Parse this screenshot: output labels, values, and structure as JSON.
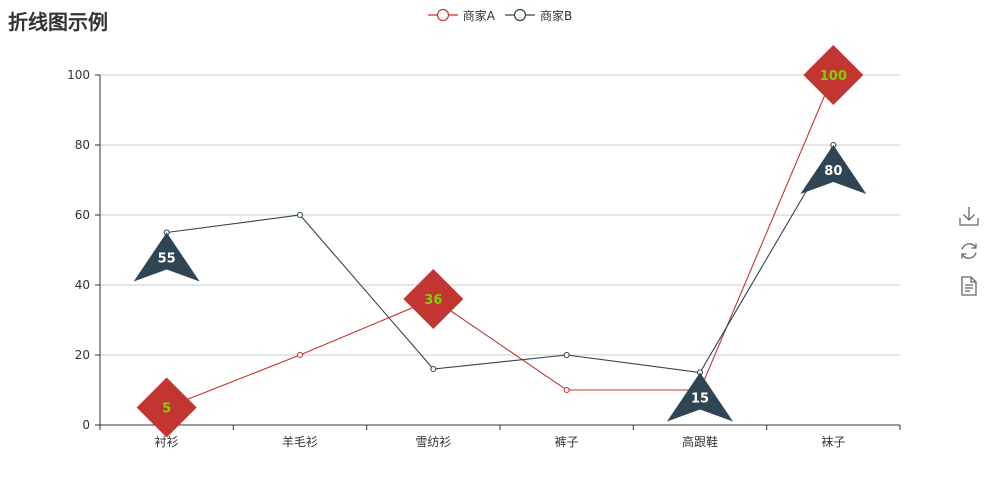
{
  "chart_data": {
    "type": "line",
    "title": "折线图示例",
    "categories": [
      "衬衫",
      "羊毛衫",
      "雪纺衫",
      "裤子",
      "高跟鞋",
      "袜子"
    ],
    "ylim": [
      0,
      100
    ],
    "yticks": [
      0,
      20,
      40,
      60,
      80,
      100
    ],
    "grid": true,
    "legend_position": "top-center",
    "series": [
      {
        "name": "商家A",
        "color": "#c23531",
        "values": [
          5,
          20,
          36,
          10,
          10,
          100
        ],
        "mark_points": [
          {
            "category": "衬衫",
            "value": 5
          },
          {
            "category": "雪纺衫",
            "value": 36
          },
          {
            "category": "袜子",
            "value": 100
          }
        ],
        "mark_symbol": "diamond",
        "mark_label_color": "#7fd000"
      },
      {
        "name": "商家B",
        "color": "#2f4554",
        "values": [
          55,
          60,
          16,
          20,
          15,
          80
        ],
        "mark_points": [
          {
            "category": "衬衫",
            "value": 55
          },
          {
            "category": "高跟鞋",
            "value": 15
          },
          {
            "category": "袜子",
            "value": 80
          }
        ],
        "mark_symbol": "arrow",
        "mark_label_color": "#ffffff"
      }
    ]
  },
  "toolbox": {
    "icons": [
      "download-icon",
      "refresh-icon",
      "data-view-icon"
    ]
  }
}
